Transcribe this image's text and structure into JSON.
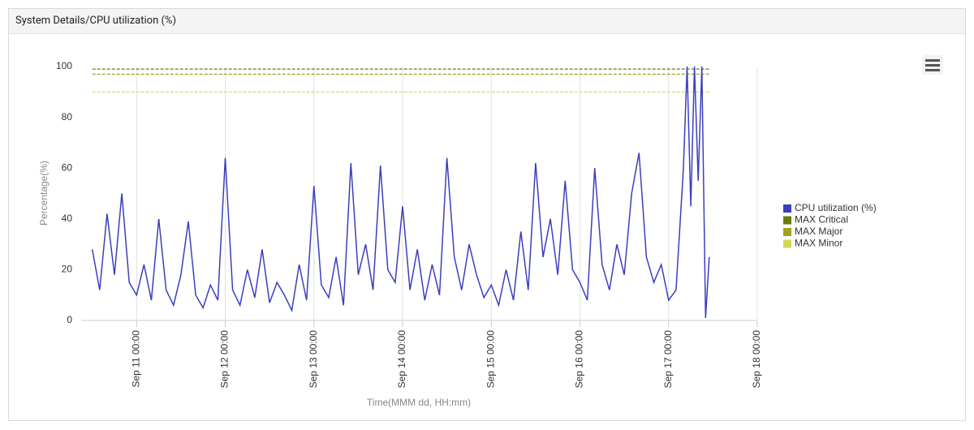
{
  "panel": {
    "title": "System Details/CPU utilization (%)"
  },
  "chart_data": {
    "type": "line",
    "x_label": "Time(MMM dd, HH:mm)",
    "y_label": "Percentage(%)",
    "xlim": [
      "Sep 10 09:00",
      "Sep 18 00:00"
    ],
    "xticks": [
      "Sep 11 00:00",
      "Sep 12 00:00",
      "Sep 13 00:00",
      "Sep 14 00:00",
      "Sep 15 00:00",
      "Sep 16 00:00",
      "Sep 17 00:00",
      "Sep 18 00:00"
    ],
    "ylim": [
      0,
      100
    ],
    "yticks": [
      0,
      20,
      40,
      60,
      80,
      100
    ],
    "grid": true,
    "legend": "right",
    "series": [
      {
        "name": "CPU utilization (%)",
        "color": "#3a3fbd",
        "line_style": "solid",
        "x": [
          "Sep 10 12:00",
          "Sep 10 14:00",
          "Sep 10 16:00",
          "Sep 10 18:00",
          "Sep 10 20:00",
          "Sep 10 22:00",
          "Sep 11 00:00",
          "Sep 11 02:00",
          "Sep 11 04:00",
          "Sep 11 06:00",
          "Sep 11 08:00",
          "Sep 11 10:00",
          "Sep 11 12:00",
          "Sep 11 14:00",
          "Sep 11 16:00",
          "Sep 11 18:00",
          "Sep 11 20:00",
          "Sep 11 22:00",
          "Sep 12 00:00",
          "Sep 12 02:00",
          "Sep 12 04:00",
          "Sep 12 06:00",
          "Sep 12 08:00",
          "Sep 12 10:00",
          "Sep 12 12:00",
          "Sep 12 14:00",
          "Sep 12 16:00",
          "Sep 12 18:00",
          "Sep 12 20:00",
          "Sep 12 22:00",
          "Sep 13 00:00",
          "Sep 13 02:00",
          "Sep 13 04:00",
          "Sep 13 06:00",
          "Sep 13 08:00",
          "Sep 13 10:00",
          "Sep 13 12:00",
          "Sep 13 14:00",
          "Sep 13 16:00",
          "Sep 13 18:00",
          "Sep 13 20:00",
          "Sep 13 22:00",
          "Sep 14 00:00",
          "Sep 14 02:00",
          "Sep 14 04:00",
          "Sep 14 06:00",
          "Sep 14 08:00",
          "Sep 14 10:00",
          "Sep 14 12:00",
          "Sep 14 14:00",
          "Sep 14 16:00",
          "Sep 14 18:00",
          "Sep 14 20:00",
          "Sep 14 22:00",
          "Sep 15 00:00",
          "Sep 15 02:00",
          "Sep 15 04:00",
          "Sep 15 06:00",
          "Sep 15 08:00",
          "Sep 15 10:00",
          "Sep 15 12:00",
          "Sep 15 14:00",
          "Sep 15 16:00",
          "Sep 15 18:00",
          "Sep 15 20:00",
          "Sep 15 22:00",
          "Sep 16 00:00",
          "Sep 16 02:00",
          "Sep 16 04:00",
          "Sep 16 06:00",
          "Sep 16 08:00",
          "Sep 16 10:00",
          "Sep 16 12:00",
          "Sep 16 14:00",
          "Sep 16 16:00",
          "Sep 16 18:00",
          "Sep 16 20:00",
          "Sep 16 22:00",
          "Sep 17 00:00",
          "Sep 17 02:00",
          "Sep 17 04:00",
          "Sep 17 05:00",
          "Sep 17 06:00",
          "Sep 17 07:00",
          "Sep 17 08:00",
          "Sep 17 09:00",
          "Sep 17 10:00",
          "Sep 17 11:00"
        ],
        "values": [
          28,
          12,
          42,
          18,
          50,
          15,
          10,
          22,
          8,
          40,
          12,
          6,
          18,
          39,
          10,
          5,
          14,
          8,
          64,
          12,
          6,
          20,
          9,
          28,
          7,
          15,
          10,
          4,
          22,
          8,
          53,
          14,
          9,
          25,
          6,
          62,
          18,
          30,
          12,
          61,
          20,
          15,
          45,
          12,
          28,
          8,
          22,
          10,
          64,
          25,
          12,
          30,
          18,
          9,
          14,
          6,
          20,
          8,
          35,
          12,
          62,
          25,
          40,
          18,
          55,
          20,
          15,
          8,
          60,
          22,
          12,
          30,
          18,
          50,
          66,
          25,
          15,
          22,
          8,
          12,
          60,
          100,
          45,
          100,
          55,
          100,
          1,
          25
        ]
      },
      {
        "name": "MAX Critical",
        "color": "#6b7a12",
        "line_style": "dashed",
        "x": [
          "Sep 10 12:00",
          "Sep 17 11:00"
        ],
        "values": [
          99,
          99
        ]
      },
      {
        "name": "MAX Major",
        "color": "#9ea51c",
        "line_style": "dashed",
        "x": [
          "Sep 10 12:00",
          "Sep 17 11:00"
        ],
        "values": [
          97,
          97
        ]
      },
      {
        "name": "MAX Minor",
        "color": "#d3d55a",
        "line_style": "dashed",
        "x": [
          "Sep 10 12:00",
          "Sep 17 11:00"
        ],
        "values": [
          90,
          90
        ]
      }
    ]
  }
}
